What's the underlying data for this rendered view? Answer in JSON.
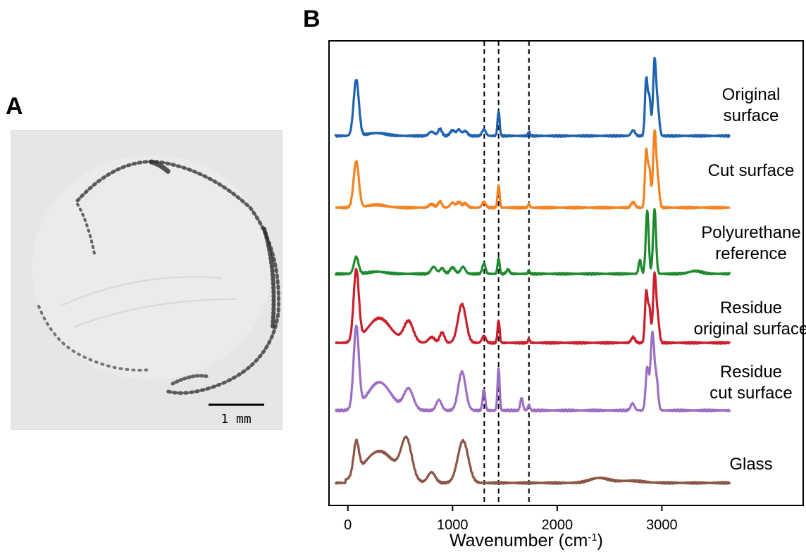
{
  "panels": {
    "a_label": "A",
    "b_label": "B"
  },
  "micrograph": {
    "scale_label": "1 mm"
  },
  "chart_data": {
    "type": "line",
    "title": "",
    "xlabel_main": "Wavenumber (cm",
    "xlabel_sup": "-1",
    "xlabel_close": ")",
    "xlim": [
      -180,
      4350
    ],
    "xticks": [
      0,
      1000,
      2000,
      3000
    ],
    "grid": false,
    "legend": "none",
    "vertical_lines": [
      1303,
      1440,
      1730
    ],
    "series": [
      {
        "name": "Original surface",
        "label_lines": [
          "Original",
          "surface"
        ],
        "color": "#1f62b0",
        "peaks": [
          [
            80,
            80,
            25
          ],
          [
            275,
            4,
            90
          ],
          [
            800,
            6,
            25
          ],
          [
            880,
            10,
            18
          ],
          [
            1000,
            8,
            22
          ],
          [
            1060,
            9,
            18
          ],
          [
            1120,
            7,
            22
          ],
          [
            1300,
            9,
            18
          ],
          [
            1440,
            35,
            10
          ],
          [
            1730,
            6,
            8
          ],
          [
            2725,
            8,
            18
          ],
          [
            2850,
            78,
            12
          ],
          [
            2880,
            55,
            14
          ],
          [
            2930,
            105,
            14
          ],
          [
            2960,
            40,
            15
          ]
        ]
      },
      {
        "name": "Cut surface",
        "label_lines": [
          "Cut surface"
        ],
        "color": "#f58221",
        "peaks": [
          [
            80,
            66,
            25
          ],
          [
            275,
            4,
            90
          ],
          [
            800,
            5,
            25
          ],
          [
            880,
            9,
            18
          ],
          [
            1000,
            7,
            22
          ],
          [
            1060,
            8,
            18
          ],
          [
            1120,
            6,
            22
          ],
          [
            1300,
            8,
            18
          ],
          [
            1440,
            32,
            10
          ],
          [
            1730,
            6,
            8
          ],
          [
            2725,
            8,
            18
          ],
          [
            2850,
            78,
            12
          ],
          [
            2880,
            55,
            14
          ],
          [
            2930,
            105,
            14
          ],
          [
            2960,
            40,
            15
          ]
        ]
      },
      {
        "name": "Polyurethane reference",
        "label_lines": [
          "Polyurethane",
          "reference"
        ],
        "color": "#1e8a2e",
        "peaks": [
          [
            80,
            24,
            22
          ],
          [
            280,
            3,
            80
          ],
          [
            820,
            10,
            25
          ],
          [
            900,
            8,
            20
          ],
          [
            1000,
            9,
            25
          ],
          [
            1100,
            10,
            22
          ],
          [
            1300,
            15,
            15
          ],
          [
            1440,
            22,
            10
          ],
          [
            1530,
            6,
            15
          ],
          [
            1730,
            5,
            8
          ],
          [
            2790,
            20,
            12
          ],
          [
            2860,
            90,
            14
          ],
          [
            2930,
            92,
            14
          ],
          [
            3320,
            4,
            60
          ]
        ]
      },
      {
        "name": "Residue original surface",
        "label_lines": [
          "Residue",
          "original surface"
        ],
        "color": "#c8202c",
        "peaks": [
          [
            80,
            100,
            25
          ],
          [
            300,
            35,
            110
          ],
          [
            580,
            30,
            45
          ],
          [
            800,
            8,
            30
          ],
          [
            900,
            15,
            22
          ],
          [
            1090,
            55,
            38
          ],
          [
            1300,
            10,
            18
          ],
          [
            1440,
            32,
            10
          ],
          [
            1730,
            6,
            8
          ],
          [
            2725,
            8,
            18
          ],
          [
            2850,
            70,
            12
          ],
          [
            2880,
            50,
            14
          ],
          [
            2930,
            95,
            14
          ],
          [
            2960,
            35,
            15
          ]
        ]
      },
      {
        "name": "Residue cut surface",
        "label_lines": [
          "Residue",
          "cut surface"
        ],
        "color": "#9d6ec4",
        "peaks": [
          [
            80,
            115,
            25
          ],
          [
            300,
            40,
            110
          ],
          [
            580,
            30,
            45
          ],
          [
            870,
            15,
            25
          ],
          [
            1090,
            55,
            35
          ],
          [
            1300,
            30,
            12
          ],
          [
            1440,
            60,
            10
          ],
          [
            1660,
            18,
            12
          ],
          [
            1730,
            8,
            10
          ],
          [
            2720,
            10,
            18
          ],
          [
            2860,
            60,
            15
          ],
          [
            2910,
            110,
            18
          ],
          [
            2950,
            40,
            15
          ]
        ]
      },
      {
        "name": "Glass",
        "label_lines": [
          "Glass"
        ],
        "color": "#8c5646",
        "peaks": [
          [
            80,
            45,
            25
          ],
          [
            300,
            45,
            150
          ],
          [
            560,
            55,
            50
          ],
          [
            800,
            15,
            35
          ],
          [
            1100,
            60,
            50
          ],
          [
            2400,
            7,
            90
          ],
          [
            2700,
            3,
            120
          ]
        ]
      }
    ]
  }
}
